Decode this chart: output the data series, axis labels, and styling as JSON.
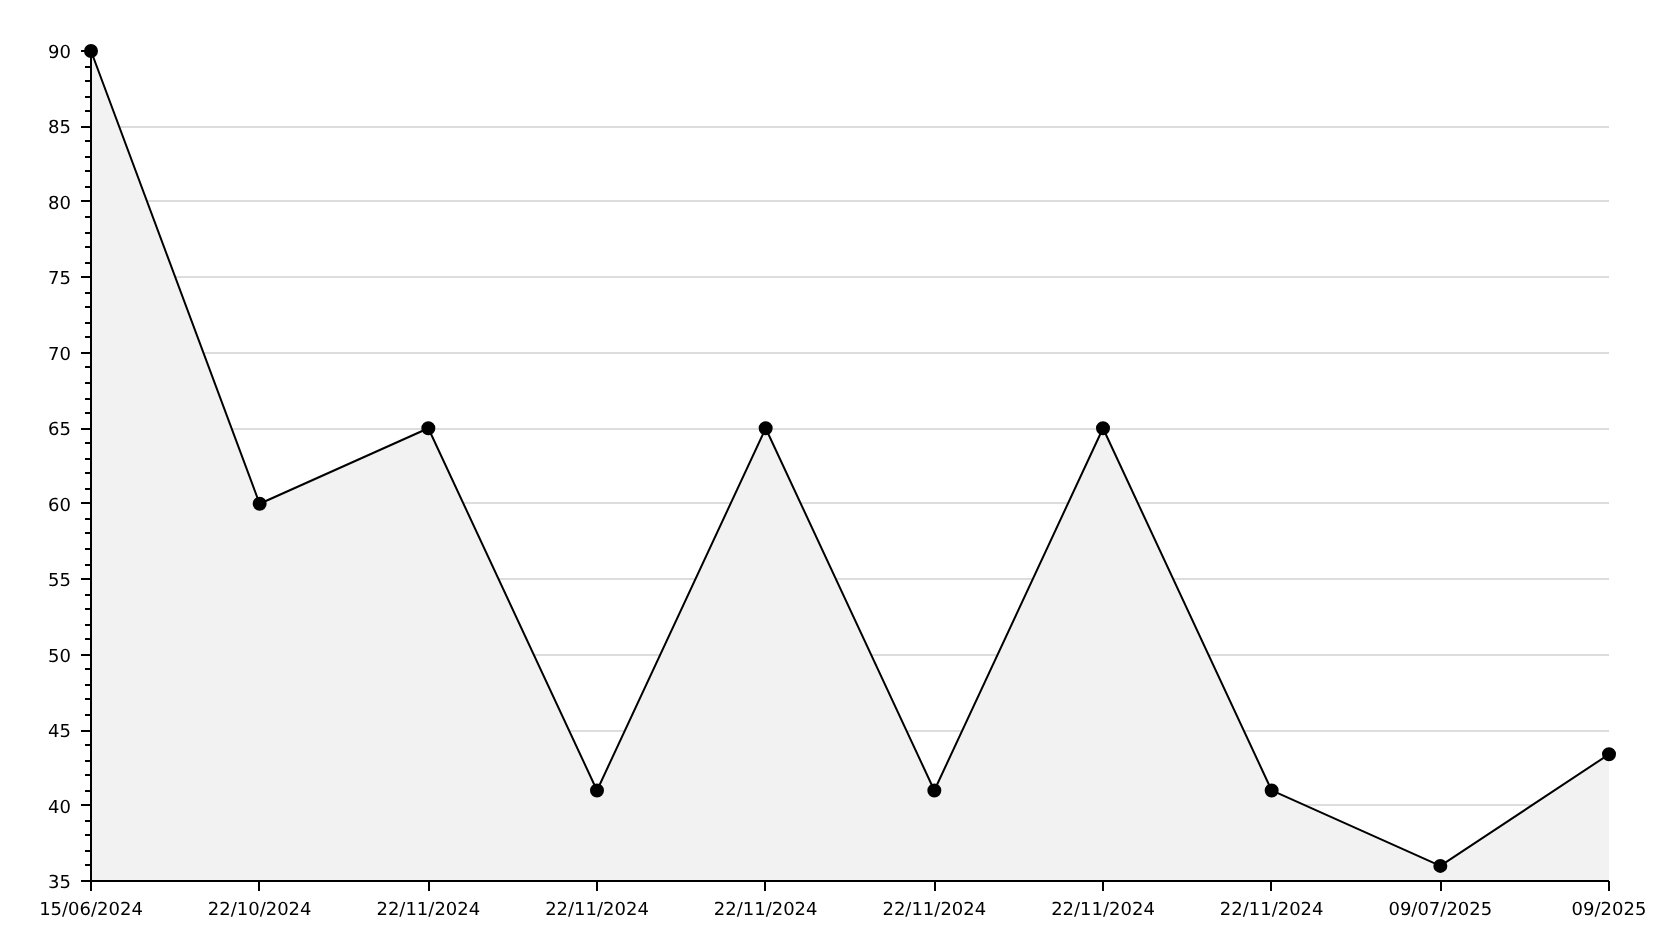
{
  "chart_data": {
    "type": "area",
    "categories": [
      "15/06/2024",
      "22/10/2024",
      "22/11/2024",
      "22/11/2024",
      "22/11/2024",
      "22/11/2024",
      "22/11/2024",
      "22/11/2024",
      "09/07/2025",
      "09/2025"
    ],
    "series": [
      {
        "color": "#000000",
        "values": [
          90,
          60,
          65,
          41,
          65,
          41,
          65,
          41,
          36,
          43.4
        ]
      }
    ],
    "ylim": [
      35,
      90
    ],
    "yticks": [
      35,
      40,
      45,
      50,
      55,
      60,
      65,
      70,
      75,
      80,
      85,
      90
    ],
    "grid": "y",
    "marker": "circle",
    "line_style": "solid"
  }
}
